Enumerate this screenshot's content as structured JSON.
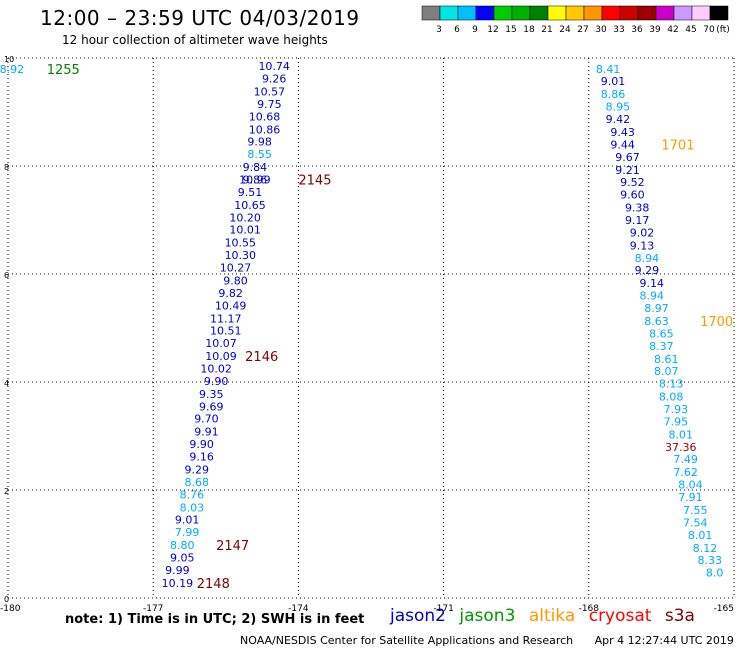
{
  "header": {
    "title": "12:00 – 23:59 UTC 04/03/2019",
    "subtitle": "12 hour collection of altimeter wave heights"
  },
  "colorbar": {
    "labels": [
      "3",
      "6",
      "9",
      "12",
      "15",
      "18",
      "21",
      "24",
      "27",
      "30",
      "33",
      "36",
      "39",
      "42",
      "45",
      "70",
      "(ft)"
    ],
    "colors": [
      "#7f7f7f",
      "#00e5e5",
      "#00bfff",
      "#0000ff",
      "#00cc00",
      "#00b000",
      "#008000",
      "#ffff00",
      "#ffc800",
      "#ff9600",
      "#ff0000",
      "#cc0000",
      "#990000",
      "#cc00cc",
      "#cc99ff",
      "#ffccff",
      "#000000"
    ]
  },
  "footer": {
    "note": "note: 1) Time is in UTC; 2) SWH is in feet",
    "legend": [
      {
        "label": "jason2",
        "color": "#0000cc"
      },
      {
        "label": "jason3",
        "color": "#009900"
      },
      {
        "label": "altika",
        "color": "#ff9900"
      },
      {
        "label": "cryosat",
        "color": "#ff0000"
      },
      {
        "label": "s3a",
        "color": "#800000"
      }
    ],
    "credit": "NOAA/NESDIS Center for Satellite Applications and Research",
    "timestamp": "Apr  4 12:27:44 UTC 2019"
  },
  "chart_data": {
    "type": "scatter",
    "title": "12:00 – 23:59 UTC 04/03/2019",
    "xlim": [
      -180,
      -165
    ],
    "ylim": [
      0,
      10
    ],
    "x_ticks": [
      "-180",
      "-177",
      "-174",
      "-171",
      "-168",
      "-165"
    ],
    "y_ticks": [
      "0",
      "2",
      "4",
      "6",
      "8",
      "10"
    ],
    "grid": true,
    "points": [
      {
        "x": -179.92,
        "y": 9.8,
        "label": "8.92",
        "color": "#00aaff"
      },
      {
        "x": -174.5,
        "y": 9.85,
        "label": "10.74",
        "color": "#0000cc"
      },
      {
        "x": -174.5,
        "y": 9.62,
        "label": "9.26",
        "color": "#0000cc"
      },
      {
        "x": -174.6,
        "y": 9.38,
        "label": "10.57",
        "color": "#0000cc"
      },
      {
        "x": -174.6,
        "y": 9.15,
        "label": "9.75",
        "color": "#0000cc"
      },
      {
        "x": -174.7,
        "y": 8.92,
        "label": "10.68",
        "color": "#0000cc"
      },
      {
        "x": -174.7,
        "y": 8.68,
        "label": "10.86",
        "color": "#0000cc"
      },
      {
        "x": -174.8,
        "y": 8.45,
        "label": "9.98",
        "color": "#0000cc"
      },
      {
        "x": -174.8,
        "y": 8.22,
        "label": "8.55",
        "color": "#00aaff"
      },
      {
        "x": -174.9,
        "y": 7.98,
        "label": "9.84",
        "color": "#0000cc"
      },
      {
        "x": -174.9,
        "y": 7.75,
        "label": "10.99",
        "color": "#0000cc"
      },
      {
        "x": -174.9,
        "y": 7.75,
        "label": "9.86",
        "color": "#0000cc"
      },
      {
        "x": -175.0,
        "y": 7.52,
        "label": "9.51",
        "color": "#0000cc"
      },
      {
        "x": -175.0,
        "y": 7.28,
        "label": "10.65",
        "color": "#0000cc"
      },
      {
        "x": -175.1,
        "y": 7.05,
        "label": "10.20",
        "color": "#0000cc"
      },
      {
        "x": -175.1,
        "y": 6.82,
        "label": "10.01",
        "color": "#0000cc"
      },
      {
        "x": -175.2,
        "y": 6.58,
        "label": "10.55",
        "color": "#0000cc"
      },
      {
        "x": -175.2,
        "y": 6.35,
        "label": "10.30",
        "color": "#0000cc"
      },
      {
        "x": -175.3,
        "y": 6.12,
        "label": "10.27",
        "color": "#0000cc"
      },
      {
        "x": -175.3,
        "y": 5.88,
        "label": "9.80",
        "color": "#0000cc"
      },
      {
        "x": -175.4,
        "y": 5.65,
        "label": "9.82",
        "color": "#0000cc"
      },
      {
        "x": -175.4,
        "y": 5.42,
        "label": "10.49",
        "color": "#0000cc"
      },
      {
        "x": -175.5,
        "y": 5.18,
        "label": "11.17",
        "color": "#0000cc"
      },
      {
        "x": -175.5,
        "y": 4.95,
        "label": "10.51",
        "color": "#0000cc"
      },
      {
        "x": -175.6,
        "y": 4.72,
        "label": "10.07",
        "color": "#0000cc"
      },
      {
        "x": -175.6,
        "y": 4.48,
        "label": "10.09",
        "color": "#0000cc"
      },
      {
        "x": -175.7,
        "y": 4.25,
        "label": "10.02",
        "color": "#0000cc"
      },
      {
        "x": -175.7,
        "y": 4.02,
        "label": "9.90",
        "color": "#0000cc"
      },
      {
        "x": -175.8,
        "y": 3.78,
        "label": "9.35",
        "color": "#0000cc"
      },
      {
        "x": -175.8,
        "y": 3.55,
        "label": "9.69",
        "color": "#0000cc"
      },
      {
        "x": -175.9,
        "y": 3.32,
        "label": "9.70",
        "color": "#0000cc"
      },
      {
        "x": -175.9,
        "y": 3.08,
        "label": "9.91",
        "color": "#0000cc"
      },
      {
        "x": -176.0,
        "y": 2.85,
        "label": "9.90",
        "color": "#0000cc"
      },
      {
        "x": -176.0,
        "y": 2.62,
        "label": "9.16",
        "color": "#0000cc"
      },
      {
        "x": -176.1,
        "y": 2.38,
        "label": "9.29",
        "color": "#0000cc"
      },
      {
        "x": -176.1,
        "y": 2.15,
        "label": "8.68",
        "color": "#00aaff"
      },
      {
        "x": -176.2,
        "y": 1.92,
        "label": "8.76",
        "color": "#00aaff"
      },
      {
        "x": -176.2,
        "y": 1.68,
        "label": "8.03",
        "color": "#00aaff"
      },
      {
        "x": -176.3,
        "y": 1.45,
        "label": "9.01",
        "color": "#0000cc"
      },
      {
        "x": -176.3,
        "y": 1.22,
        "label": "7.99",
        "color": "#00aaff"
      },
      {
        "x": -176.4,
        "y": 0.98,
        "label": "8.80",
        "color": "#00aaff"
      },
      {
        "x": -176.4,
        "y": 0.75,
        "label": "9.05",
        "color": "#0000cc"
      },
      {
        "x": -176.5,
        "y": 0.52,
        "label": "9.99",
        "color": "#0000cc"
      },
      {
        "x": -176.5,
        "y": 0.28,
        "label": "10.19",
        "color": "#0000cc"
      },
      {
        "x": -167.6,
        "y": 9.8,
        "label": "8.41",
        "color": "#00aaff"
      },
      {
        "x": -167.5,
        "y": 9.57,
        "label": "9.01",
        "color": "#0000cc"
      },
      {
        "x": -167.5,
        "y": 9.33,
        "label": "8.86",
        "color": "#00aaff"
      },
      {
        "x": -167.4,
        "y": 9.1,
        "label": "8.95",
        "color": "#00aaff"
      },
      {
        "x": -167.4,
        "y": 8.87,
        "label": "9.42",
        "color": "#0000cc"
      },
      {
        "x": -167.3,
        "y": 8.63,
        "label": "9.43",
        "color": "#0000cc"
      },
      {
        "x": -167.3,
        "y": 8.4,
        "label": "9.44",
        "color": "#0000cc"
      },
      {
        "x": -167.2,
        "y": 8.17,
        "label": "9.67",
        "color": "#0000cc"
      },
      {
        "x": -167.2,
        "y": 7.93,
        "label": "9.21",
        "color": "#0000cc"
      },
      {
        "x": -167.1,
        "y": 7.7,
        "label": "9.52",
        "color": "#0000cc"
      },
      {
        "x": -167.1,
        "y": 7.47,
        "label": "9.60",
        "color": "#0000cc"
      },
      {
        "x": -167.0,
        "y": 7.23,
        "label": "9.38",
        "color": "#0000cc"
      },
      {
        "x": -167.0,
        "y": 7.0,
        "label": "9.17",
        "color": "#0000cc"
      },
      {
        "x": -166.9,
        "y": 6.77,
        "label": "9.02",
        "color": "#0000cc"
      },
      {
        "x": -166.9,
        "y": 6.53,
        "label": "9.13",
        "color": "#0000cc"
      },
      {
        "x": -166.8,
        "y": 6.3,
        "label": "8.94",
        "color": "#00aaff"
      },
      {
        "x": -166.8,
        "y": 6.07,
        "label": "9.29",
        "color": "#0000cc"
      },
      {
        "x": -166.7,
        "y": 5.83,
        "label": "9.14",
        "color": "#0000cc"
      },
      {
        "x": -166.7,
        "y": 5.6,
        "label": "8.94",
        "color": "#00aaff"
      },
      {
        "x": -166.6,
        "y": 5.37,
        "label": "8.97",
        "color": "#00aaff"
      },
      {
        "x": -166.6,
        "y": 5.13,
        "label": "8.63",
        "color": "#00aaff"
      },
      {
        "x": -166.5,
        "y": 4.9,
        "label": "8.65",
        "color": "#00aaff"
      },
      {
        "x": -166.5,
        "y": 4.67,
        "label": "8.37",
        "color": "#00aaff"
      },
      {
        "x": -166.4,
        "y": 4.43,
        "label": "8.61",
        "color": "#00aaff"
      },
      {
        "x": -166.4,
        "y": 4.2,
        "label": "8.07",
        "color": "#00aaff"
      },
      {
        "x": -166.3,
        "y": 3.97,
        "label": "8.13",
        "color": "#00aaff"
      },
      {
        "x": -166.3,
        "y": 3.73,
        "label": "8.08",
        "color": "#00aaff"
      },
      {
        "x": -166.2,
        "y": 3.5,
        "label": "7.93",
        "color": "#00aaff"
      },
      {
        "x": -166.2,
        "y": 3.27,
        "label": "7.95",
        "color": "#00aaff"
      },
      {
        "x": -166.1,
        "y": 3.03,
        "label": "8.01",
        "color": "#00aaff"
      },
      {
        "x": -166.1,
        "y": 2.8,
        "label": "37.36",
        "color": "#990000"
      },
      {
        "x": -166.0,
        "y": 2.57,
        "label": "7.49",
        "color": "#00aaff"
      },
      {
        "x": -166.0,
        "y": 2.33,
        "label": "7.62",
        "color": "#00aaff"
      },
      {
        "x": -165.9,
        "y": 2.1,
        "label": "8.04",
        "color": "#00aaff"
      },
      {
        "x": -165.9,
        "y": 1.87,
        "label": "7.91",
        "color": "#00aaff"
      },
      {
        "x": -165.8,
        "y": 1.63,
        "label": "7.55",
        "color": "#00aaff"
      },
      {
        "x": -165.8,
        "y": 1.4,
        "label": "7.54",
        "color": "#00aaff"
      },
      {
        "x": -165.7,
        "y": 1.17,
        "label": "8.01",
        "color": "#00aaff"
      },
      {
        "x": -165.6,
        "y": 0.93,
        "label": "8.12",
        "color": "#00aaff"
      },
      {
        "x": -165.5,
        "y": 0.7,
        "label": "8.33",
        "color": "#00aaff"
      },
      {
        "x": -165.4,
        "y": 0.47,
        "label": "8.0",
        "color": "#00aaff"
      }
    ],
    "time_labels": [
      {
        "x": -179.2,
        "y": 9.8,
        "label": "1255",
        "color": "#008000"
      },
      {
        "x": -174.0,
        "y": 7.75,
        "label": "2145",
        "color": "#800000"
      },
      {
        "x": -175.1,
        "y": 4.48,
        "label": "2146",
        "color": "#800000"
      },
      {
        "x": -175.7,
        "y": 0.98,
        "label": "2147",
        "color": "#800000"
      },
      {
        "x": -176.1,
        "y": 0.28,
        "label": "2148",
        "color": "#800000"
      },
      {
        "x": -166.5,
        "y": 8.4,
        "label": "1701",
        "color": "#ff9900"
      },
      {
        "x": -165.7,
        "y": 5.13,
        "label": "1700",
        "color": "#ff9900"
      }
    ]
  }
}
